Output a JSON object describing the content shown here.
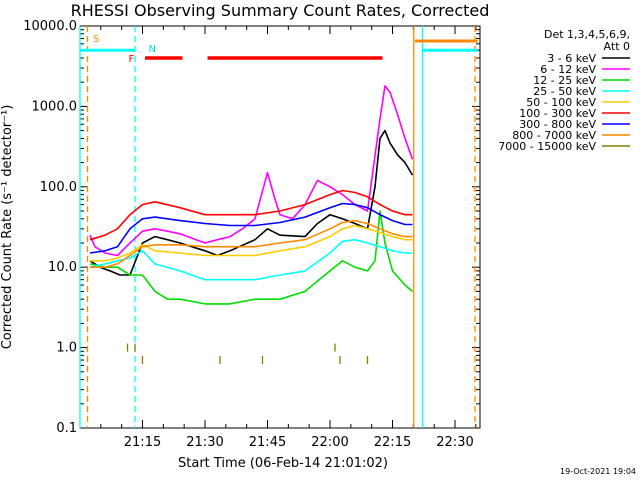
{
  "chart_data": {
    "type": "line",
    "title": "RHESSI Observing Summary Count Rates, Corrected",
    "xlabel": "Start Time (06-Feb-14 21:01:02)",
    "ylabel": "Corrected Count Rate (s⁻¹ detector⁻¹)",
    "yscale": "log",
    "ylim": [
      0.1,
      10000
    ],
    "xlim_minutes": [
      21.0,
      22.6
    ],
    "x_ticks": [
      {
        "label": "21:15",
        "t": 21.25
      },
      {
        "label": "21:30",
        "t": 21.5
      },
      {
        "label": "21:45",
        "t": 21.75
      },
      {
        "label": "22:00",
        "t": 22.0
      },
      {
        "label": "22:15",
        "t": 22.25
      },
      {
        "label": "22:30",
        "t": 22.5
      }
    ],
    "y_ticks": [
      {
        "label": "0.1",
        "v": 0.1
      },
      {
        "label": "1.0",
        "v": 1
      },
      {
        "label": "10.0",
        "v": 10
      },
      {
        "label": "100.0",
        "v": 100
      },
      {
        "label": "1000.0",
        "v": 1000
      },
      {
        "label": "10000.0",
        "v": 10000
      }
    ],
    "legend_header": [
      "Det 1,3,4,5,6,9,",
      "Att 0"
    ],
    "legend_placement": "right",
    "series": [
      {
        "name": "3 - 6 keV",
        "color": "#000000",
        "t": [
          21.04,
          21.08,
          21.12,
          21.16,
          21.2,
          21.25,
          21.3,
          21.35,
          21.4,
          21.5,
          21.55,
          21.6,
          21.7,
          21.75,
          21.8,
          21.9,
          21.95,
          22.0,
          22.05,
          22.1,
          22.15,
          22.18,
          22.2,
          22.22,
          22.24,
          22.27,
          22.3,
          22.33
        ],
        "v": [
          12,
          10,
          9,
          8,
          8,
          20,
          24,
          22,
          20,
          16,
          14,
          16,
          22,
          30,
          25,
          24,
          35,
          45,
          40,
          35,
          30,
          100,
          400,
          500,
          350,
          250,
          200,
          140
        ]
      },
      {
        "name": "6 - 12 keV",
        "color": "#ff00ff",
        "t": [
          21.04,
          21.06,
          21.1,
          21.15,
          21.2,
          21.25,
          21.3,
          21.35,
          21.4,
          21.5,
          21.55,
          21.6,
          21.65,
          21.7,
          21.75,
          21.78,
          21.8,
          21.85,
          21.9,
          21.95,
          22.0,
          22.05,
          22.1,
          22.15,
          22.2,
          22.22,
          22.24,
          22.27,
          22.3,
          22.33
        ],
        "v": [
          25,
          18,
          15,
          14,
          20,
          28,
          30,
          28,
          26,
          20,
          22,
          24,
          30,
          40,
          150,
          70,
          45,
          40,
          60,
          120,
          100,
          80,
          60,
          50,
          700,
          1800,
          1500,
          800,
          400,
          220
        ]
      },
      {
        "name": "12 - 25 keV",
        "color": "#00dd00",
        "t": [
          21.04,
          21.1,
          21.15,
          21.2,
          21.25,
          21.3,
          21.35,
          21.4,
          21.5,
          21.6,
          21.7,
          21.8,
          21.9,
          22.0,
          22.05,
          22.1,
          22.15,
          22.18,
          22.2,
          22.22,
          22.25,
          22.3,
          22.33
        ],
        "v": [
          11,
          10,
          10,
          8,
          8,
          5,
          4,
          4,
          3.5,
          3.5,
          4,
          4,
          5,
          9,
          12,
          10,
          9,
          12,
          50,
          20,
          9,
          6,
          5
        ]
      },
      {
        "name": "25 - 50 keV",
        "color": "#00ffff",
        "t": [
          21.04,
          21.1,
          21.15,
          21.2,
          21.25,
          21.3,
          21.4,
          21.5,
          21.6,
          21.7,
          21.8,
          21.9,
          22.0,
          22.05,
          22.1,
          22.15,
          22.2,
          22.25,
          22.3,
          22.33
        ],
        "v": [
          10,
          11,
          12,
          13,
          16,
          11,
          9,
          7,
          7,
          7,
          8,
          9,
          15,
          21,
          22,
          20,
          18,
          16,
          15,
          15
        ]
      },
      {
        "name": "50 - 100 keV",
        "color": "#ffcc00",
        "t": [
          21.04,
          21.1,
          21.15,
          21.2,
          21.25,
          21.3,
          21.4,
          21.5,
          21.6,
          21.7,
          21.8,
          21.9,
          22.0,
          22.05,
          22.1,
          22.15,
          22.2,
          22.25,
          22.3,
          22.33
        ],
        "v": [
          12,
          12,
          13,
          15,
          19,
          16,
          15,
          14,
          14,
          14,
          16,
          18,
          24,
          30,
          33,
          30,
          27,
          24,
          22,
          22
        ]
      },
      {
        "name": "100 - 300 keV",
        "color": "#ff0000",
        "t": [
          21.04,
          21.1,
          21.15,
          21.2,
          21.25,
          21.3,
          21.4,
          21.5,
          21.6,
          21.7,
          21.8,
          21.9,
          22.0,
          22.05,
          22.1,
          22.15,
          22.2,
          22.25,
          22.3,
          22.33
        ],
        "v": [
          22,
          25,
          30,
          45,
          60,
          65,
          55,
          45,
          45,
          45,
          50,
          60,
          80,
          90,
          85,
          75,
          60,
          50,
          45,
          45
        ]
      },
      {
        "name": "300 - 800 keV",
        "color": "#0000ff",
        "t": [
          21.04,
          21.1,
          21.15,
          21.2,
          21.25,
          21.3,
          21.4,
          21.5,
          21.6,
          21.7,
          21.8,
          21.9,
          22.0,
          22.05,
          22.1,
          22.15,
          22.2,
          22.25,
          22.3,
          22.33
        ],
        "v": [
          15,
          16,
          18,
          30,
          40,
          42,
          38,
          35,
          33,
          33,
          36,
          42,
          55,
          62,
          60,
          55,
          45,
          38,
          34,
          34
        ]
      },
      {
        "name": "800 - 7000 keV",
        "color": "#ff8800",
        "t": [
          21.04,
          21.1,
          21.15,
          21.2,
          21.25,
          21.3,
          21.4,
          21.5,
          21.6,
          21.7,
          21.8,
          21.9,
          22.0,
          22.05,
          22.1,
          22.15,
          22.2,
          22.25,
          22.3,
          22.33
        ],
        "v": [
          10,
          10,
          11,
          14,
          18,
          19,
          19,
          18,
          18,
          18,
          20,
          22,
          30,
          36,
          38,
          35,
          30,
          26,
          24,
          24
        ]
      },
      {
        "name": "7000 - 15000 keV",
        "color": "#808000",
        "t": [
          21.19,
          21.22,
          21.25,
          21.56,
          21.73,
          22.02,
          22.04,
          22.15
        ],
        "v": [
          1.0,
          1.0,
          0.7,
          0.7,
          0.7,
          1.0,
          0.7,
          0.7
        ]
      }
    ],
    "annotations": [
      {
        "label": "S",
        "color": "#ff8800",
        "t": 21.04
      },
      {
        "label": "N",
        "color": "#00dddd",
        "t": 21.25
      },
      {
        "label": "F",
        "color": "#ff0000",
        "t": 21.25
      }
    ],
    "flare_bars": [
      {
        "t0": 21.26,
        "t1": 21.41,
        "v": 4000,
        "color": "#ff0000"
      },
      {
        "t0": 21.51,
        "t1": 22.21,
        "v": 4000,
        "color": "#ff0000"
      }
    ],
    "night_segments": [
      {
        "t0": 21.0,
        "t1": 21.22,
        "v": 5000,
        "color": "#00ffff"
      },
      {
        "t0": 22.37,
        "t1": 22.59,
        "v": 5000,
        "color": "#00ffff"
      }
    ],
    "saa_segments": [
      {
        "t0": 22.34,
        "t1": 22.59,
        "v": 6500,
        "color": "#ff8800"
      }
    ],
    "vertical_lines": [
      {
        "t": 21.0,
        "color": "#00ffff",
        "style": "solid"
      },
      {
        "t": 21.03,
        "color": "#ff8800",
        "style": "dashed"
      },
      {
        "t": 21.22,
        "color": "#00ffff",
        "style": "dashed"
      },
      {
        "t": 22.335,
        "color": "#ff8800",
        "style": "solid"
      },
      {
        "t": 22.37,
        "color": "#00ffff",
        "style": "solid"
      },
      {
        "t": 22.58,
        "color": "#ff8800",
        "style": "dashed"
      }
    ]
  },
  "footer": {
    "timestamp": "19-Oct-2021 19:04"
  }
}
